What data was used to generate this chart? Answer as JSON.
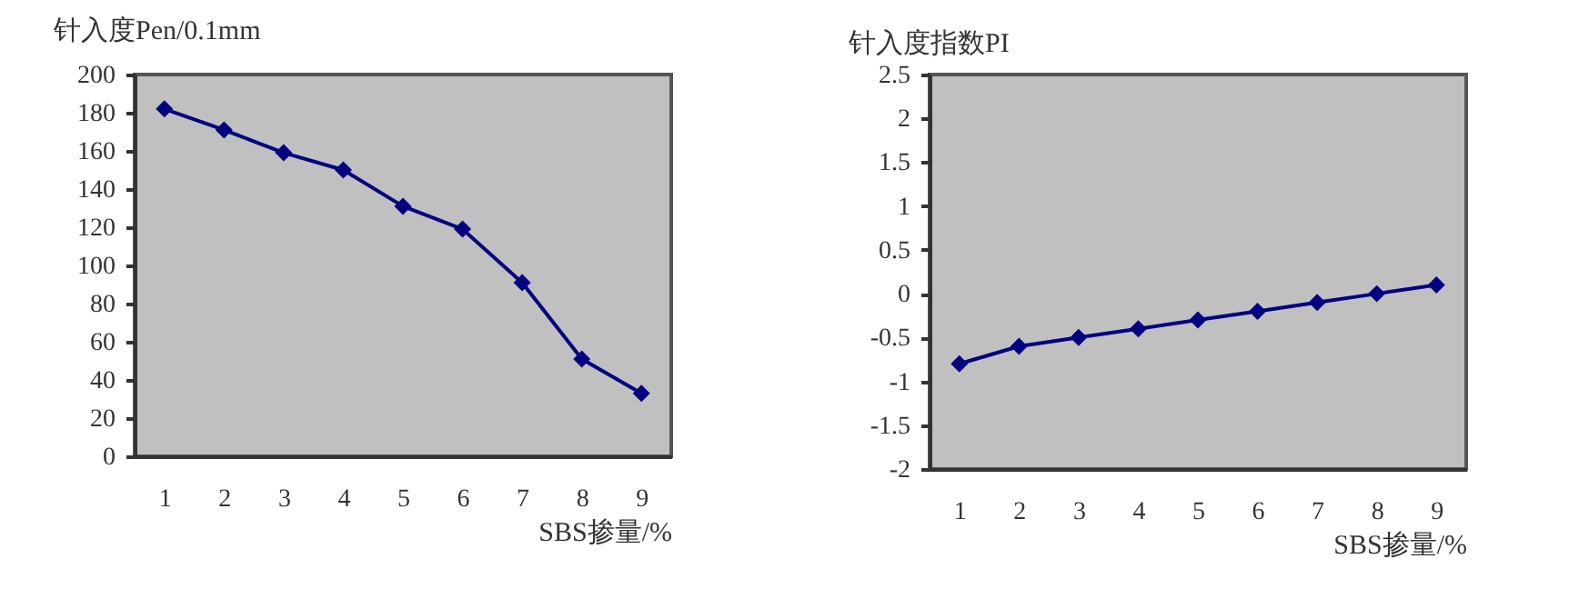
{
  "chart_data": [
    {
      "type": "line",
      "ylabel": "针入度Pen/0.1mm",
      "xlabel": "SBS掺量/%",
      "categories": [
        "1",
        "2",
        "3",
        "4",
        "5",
        "6",
        "7",
        "8",
        "9"
      ],
      "series": [
        {
          "color": "#000080",
          "values": [
            182,
            171,
            159,
            150,
            131,
            119,
            91,
            51,
            33
          ]
        }
      ],
      "ylim": [
        0,
        200
      ],
      "yticks": [
        0,
        20,
        40,
        60,
        80,
        100,
        120,
        140,
        160,
        180,
        200
      ],
      "marker": "diamond",
      "line_style": "solid"
    },
    {
      "type": "line",
      "ylabel": "针入度指数PI",
      "xlabel": "SBS掺量/%",
      "categories": [
        "1",
        "2",
        "3",
        "4",
        "5",
        "6",
        "7",
        "8",
        "9"
      ],
      "series": [
        {
          "color": "#000080",
          "values": [
            -0.8,
            -0.6,
            -0.5,
            -0.4,
            -0.3,
            -0.2,
            -0.1,
            0,
            0.1
          ]
        }
      ],
      "ylim": [
        -2,
        2.5
      ],
      "yticks": [
        -2,
        -1.5,
        -1,
        -0.5,
        0,
        0.5,
        1,
        1.5,
        2,
        2.5
      ],
      "marker": "diamond",
      "line_style": "solid"
    }
  ]
}
